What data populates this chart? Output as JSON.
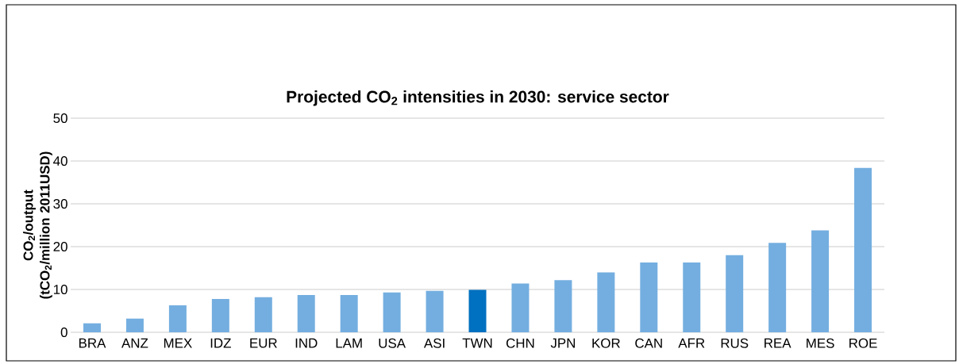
{
  "chart_data": {
    "type": "bar",
    "title": "Projected CO$_{2}$ intensities in 2030: service sector",
    "ylabel": "CO$_{2}$/output (tCO$_{2}$/million 2011USD)",
    "categories": [
      "BRA",
      "ANZ",
      "MEX",
      "IDZ",
      "EUR",
      "IND",
      "LAM",
      "USA",
      "ASI",
      "TWN",
      "CHN",
      "JPN",
      "KOR",
      "CAN",
      "AFR",
      "RUS",
      "REA",
      "MES",
      "ROE"
    ],
    "values": [
      2.1,
      3.2,
      6.3,
      7.8,
      8.2,
      8.7,
      8.7,
      9.3,
      9.7,
      9.9,
      11.4,
      12.2,
      14.0,
      16.3,
      16.3,
      18.0,
      20.9,
      23.8,
      38.4
    ],
    "colors": [
      "#74aee0",
      "#74aee0",
      "#74aee0",
      "#74aee0",
      "#74aee0",
      "#74aee0",
      "#74aee0",
      "#74aee0",
      "#74aee0",
      "#0070c0",
      "#74aee0",
      "#74aee0",
      "#74aee0",
      "#74aee0",
      "#74aee0",
      "#74aee0",
      "#74aee0",
      "#74aee0",
      "#74aee0"
    ],
    "ylim": [
      0,
      50
    ],
    "yticks": [
      0,
      10,
      20,
      30,
      40,
      50
    ],
    "grid": "y"
  }
}
